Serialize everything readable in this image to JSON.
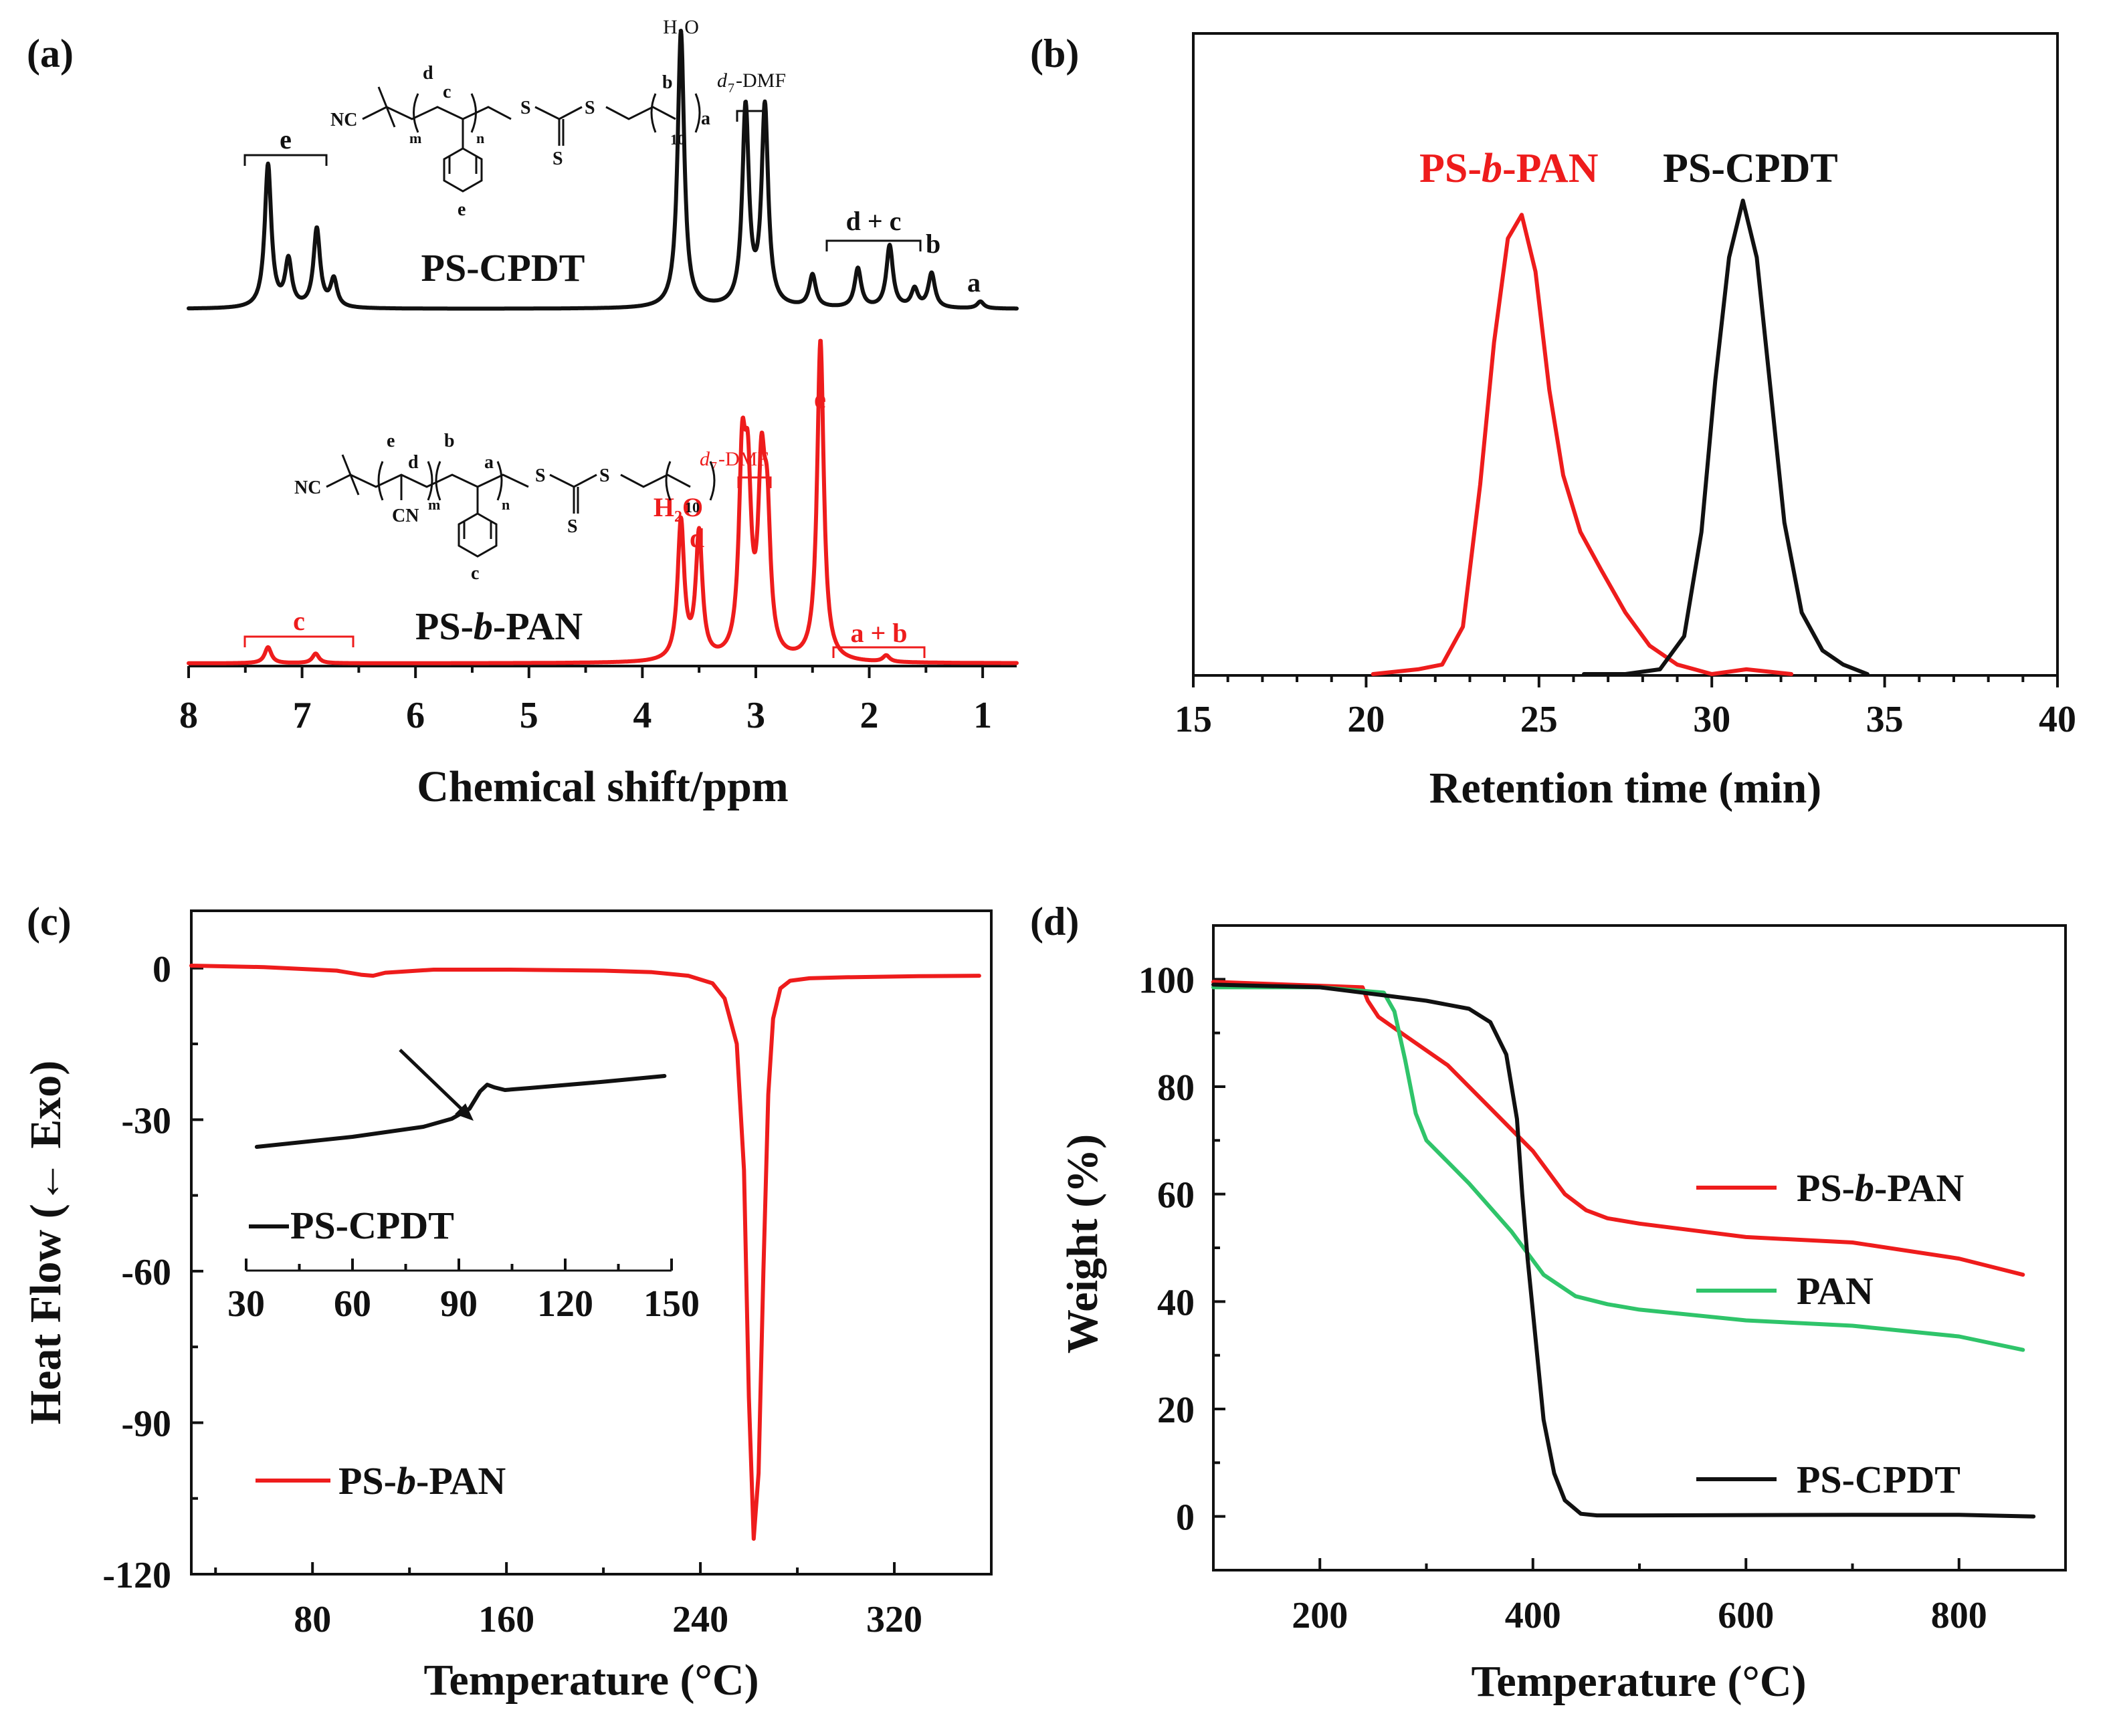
{
  "colors": {
    "red": "#ee1c1c",
    "black": "#111111",
    "green": "#2fc46a"
  },
  "chart_data": [
    {
      "panel": "(a)",
      "type": "line",
      "title": "",
      "xlabel": "Chemical shift/ppm",
      "ylabel": "",
      "xlim": [
        8,
        0.7
      ],
      "xticks": [
        "8",
        "7",
        "6",
        "5",
        "4",
        "3",
        "2",
        "1"
      ],
      "series": [
        {
          "name": "PS-CPDT",
          "color": "#111111",
          "peaks": [
            [
              7.3,
              0.62
            ],
            [
              7.12,
              0.2
            ],
            [
              6.87,
              0.34
            ],
            [
              6.72,
              0.12
            ],
            [
              3.66,
              1.2
            ],
            [
              3.09,
              0.86
            ],
            [
              2.92,
              0.86
            ],
            [
              2.5,
              0.14
            ],
            [
              2.1,
              0.17
            ],
            [
              1.82,
              0.27
            ],
            [
              1.6,
              0.08
            ],
            [
              1.45,
              0.15
            ],
            [
              1.02,
              0.03
            ]
          ]
        },
        {
          "name": "PS-b-PAN",
          "color": "#ee1c1c",
          "peaks": [
            [
              7.3,
              0.05
            ],
            [
              6.88,
              0.03
            ],
            [
              3.66,
              0.43
            ],
            [
              3.5,
              0.39
            ],
            [
              3.12,
              0.56
            ],
            [
              3.07,
              0.47
            ],
            [
              2.95,
              0.52
            ],
            [
              2.9,
              0.39
            ],
            [
              2.43,
              1.0
            ],
            [
              1.85,
              0.02
            ]
          ]
        }
      ],
      "annotations": {
        "top_struct_label": "PS-CPDT",
        "bottom_struct_label": "PS-b-PAN",
        "h2o": "H₂O",
        "dmf_prefix": "d",
        "dmf_sub": "7",
        "dmf_suffix": "-DMF",
        "top_e": "e",
        "top_dc": "d + c",
        "top_b": "b",
        "top_a": "a",
        "bot_c": "c",
        "bot_d": "d",
        "bot_e": "e",
        "bot_ab": "a + b"
      },
      "structure_top": {
        "nc": "NC",
        "m": "m",
        "n": "n",
        "d": "d",
        "c": "c",
        "b": "b",
        "a": "a",
        "s": "S",
        "ten": "10",
        "e": "e"
      },
      "structure_bottom": {
        "nc": "NC",
        "cn": "CN",
        "m": "m",
        "n": "n",
        "e": "e",
        "d": "d",
        "b": "b",
        "a": "a",
        "s": "S",
        "ten": "10",
        "c": "c"
      }
    },
    {
      "panel": "(b)",
      "type": "line",
      "title": "",
      "xlabel": "Retention time (min)",
      "ylabel": "",
      "xlim": [
        15,
        40
      ],
      "xticks": [
        "15",
        "20",
        "25",
        "30",
        "35",
        "40"
      ],
      "series": [
        {
          "name": "PS-b-PAN",
          "color": "#ee1c1c",
          "x": [
            20.2,
            21.5,
            22.2,
            22.8,
            23.3,
            23.7,
            24.1,
            24.5,
            24.9,
            25.3,
            25.7,
            26.2,
            26.8,
            27.5,
            28.2,
            29.0,
            30.0,
            31.0,
            32.3
          ],
          "y": [
            0.0,
            0.01,
            0.02,
            0.1,
            0.4,
            0.7,
            0.92,
            0.97,
            0.85,
            0.6,
            0.42,
            0.3,
            0.22,
            0.13,
            0.06,
            0.02,
            0.0,
            0.01,
            0.0
          ]
        },
        {
          "name": "PS-CPDT",
          "color": "#111111",
          "x": [
            26.3,
            27.5,
            28.5,
            29.2,
            29.7,
            30.1,
            30.5,
            30.9,
            31.3,
            31.7,
            32.1,
            32.6,
            33.2,
            33.8,
            34.5
          ],
          "y": [
            0.0,
            0.0,
            0.01,
            0.08,
            0.3,
            0.62,
            0.88,
            1.0,
            0.88,
            0.6,
            0.32,
            0.13,
            0.05,
            0.02,
            0.0
          ]
        }
      ],
      "legend": [
        "PS-b-PAN",
        "PS-CPDT"
      ],
      "legend_parts": {
        "pre": "PS-",
        "ital": "b",
        "post": "-PAN",
        "other": "PS-CPDT"
      }
    },
    {
      "panel": "(c)",
      "type": "line",
      "title": "",
      "xlabel": "Temperature (°C)",
      "ylabel": "Heat Flow (← Exo)",
      "xlim": [
        30,
        360
      ],
      "ylim": [
        -120,
        5
      ],
      "xticks": [
        "80",
        "160",
        "240",
        "320"
      ],
      "yticks": [
        "0",
        "-30",
        "-60",
        "-90",
        "-120"
      ],
      "series": [
        {
          "name": "PS-b-PAN",
          "color": "#ee1c1c",
          "x": [
            30,
            60,
            90,
            100,
            105,
            110,
            130,
            160,
            200,
            220,
            235,
            245,
            250,
            255,
            258,
            260,
            262,
            264,
            266,
            268,
            270,
            273,
            277,
            285,
            300,
            330,
            355
          ],
          "y": [
            0.5,
            0.2,
            -0.5,
            -1.3,
            -1.5,
            -0.9,
            -0.3,
            -0.3,
            -0.5,
            -0.8,
            -1.5,
            -3,
            -6,
            -15,
            -40,
            -85,
            -113,
            -100,
            -60,
            -25,
            -10,
            -4,
            -2.5,
            -2,
            -1.8,
            -1.6,
            -1.5
          ]
        }
      ],
      "inset": {
        "xlim": [
          30,
          150
        ],
        "xticks": [
          "30",
          "60",
          "90",
          "120",
          "150"
        ],
        "series": [
          {
            "name": "PS-CPDT",
            "color": "#111111",
            "x": [
              33,
              60,
              80,
              88,
              93,
              96,
              98,
              100,
              103,
              110,
              130,
              148
            ],
            "y": [
              -35.5,
              -34,
              -32.5,
              -31.3,
              -29.8,
              -27.2,
              -26.2,
              -26.6,
              -27.0,
              -26.7,
              -25.8,
              -24.9
            ]
          }
        ],
        "legend": "PS-CPDT"
      },
      "legend": "PS-b-PAN",
      "legend_parts": {
        "pre": "PS-",
        "ital": "b",
        "post": "-PAN"
      }
    },
    {
      "panel": "(d)",
      "type": "line",
      "title": "",
      "xlabel": "Temperature (°C)",
      "ylabel": "Weight (%)",
      "xlim": [
        100,
        900
      ],
      "ylim": [
        -10,
        110
      ],
      "xticks": [
        "200",
        "400",
        "600",
        "800"
      ],
      "yticks": [
        "0",
        "20",
        "40",
        "60",
        "80",
        "100"
      ],
      "series": [
        {
          "name": "PS-b-PAN",
          "color": "#ee1c1c",
          "x": [
            100,
            240,
            245,
            255,
            280,
            320,
            360,
            400,
            430,
            450,
            470,
            500,
            600,
            700,
            800,
            860
          ],
          "y": [
            99.5,
            98.5,
            96,
            93,
            89.5,
            84,
            76,
            68,
            60,
            57,
            55.5,
            54.5,
            52,
            51,
            48,
            45
          ]
        },
        {
          "name": "PAN",
          "color": "#2fc46a",
          "x": [
            100,
            200,
            260,
            270,
            280,
            290,
            300,
            340,
            380,
            410,
            440,
            470,
            500,
            600,
            700,
            800,
            860
          ],
          "y": [
            98.5,
            98.5,
            97.5,
            94,
            85,
            75,
            70,
            62,
            53,
            45,
            41,
            39.5,
            38.5,
            36.5,
            35.5,
            33.5,
            31
          ]
        },
        {
          "name": "PS-CPDT",
          "color": "#111111",
          "x": [
            100,
            200,
            260,
            300,
            340,
            360,
            375,
            385,
            390,
            395,
            400,
            410,
            420,
            430,
            445,
            460,
            500,
            700,
            800,
            870
          ],
          "y": [
            99,
            98.5,
            97,
            96,
            94.5,
            92,
            86,
            74,
            60,
            48,
            38,
            18,
            8,
            3,
            0.5,
            0.2,
            0.2,
            0.3,
            0.3,
            0
          ]
        }
      ],
      "legend": [
        "PS-b-PAN",
        "PAN",
        "PS-CPDT"
      ],
      "legend_parts": {
        "pre": "PS-",
        "ital": "b",
        "post": "-PAN"
      }
    }
  ]
}
